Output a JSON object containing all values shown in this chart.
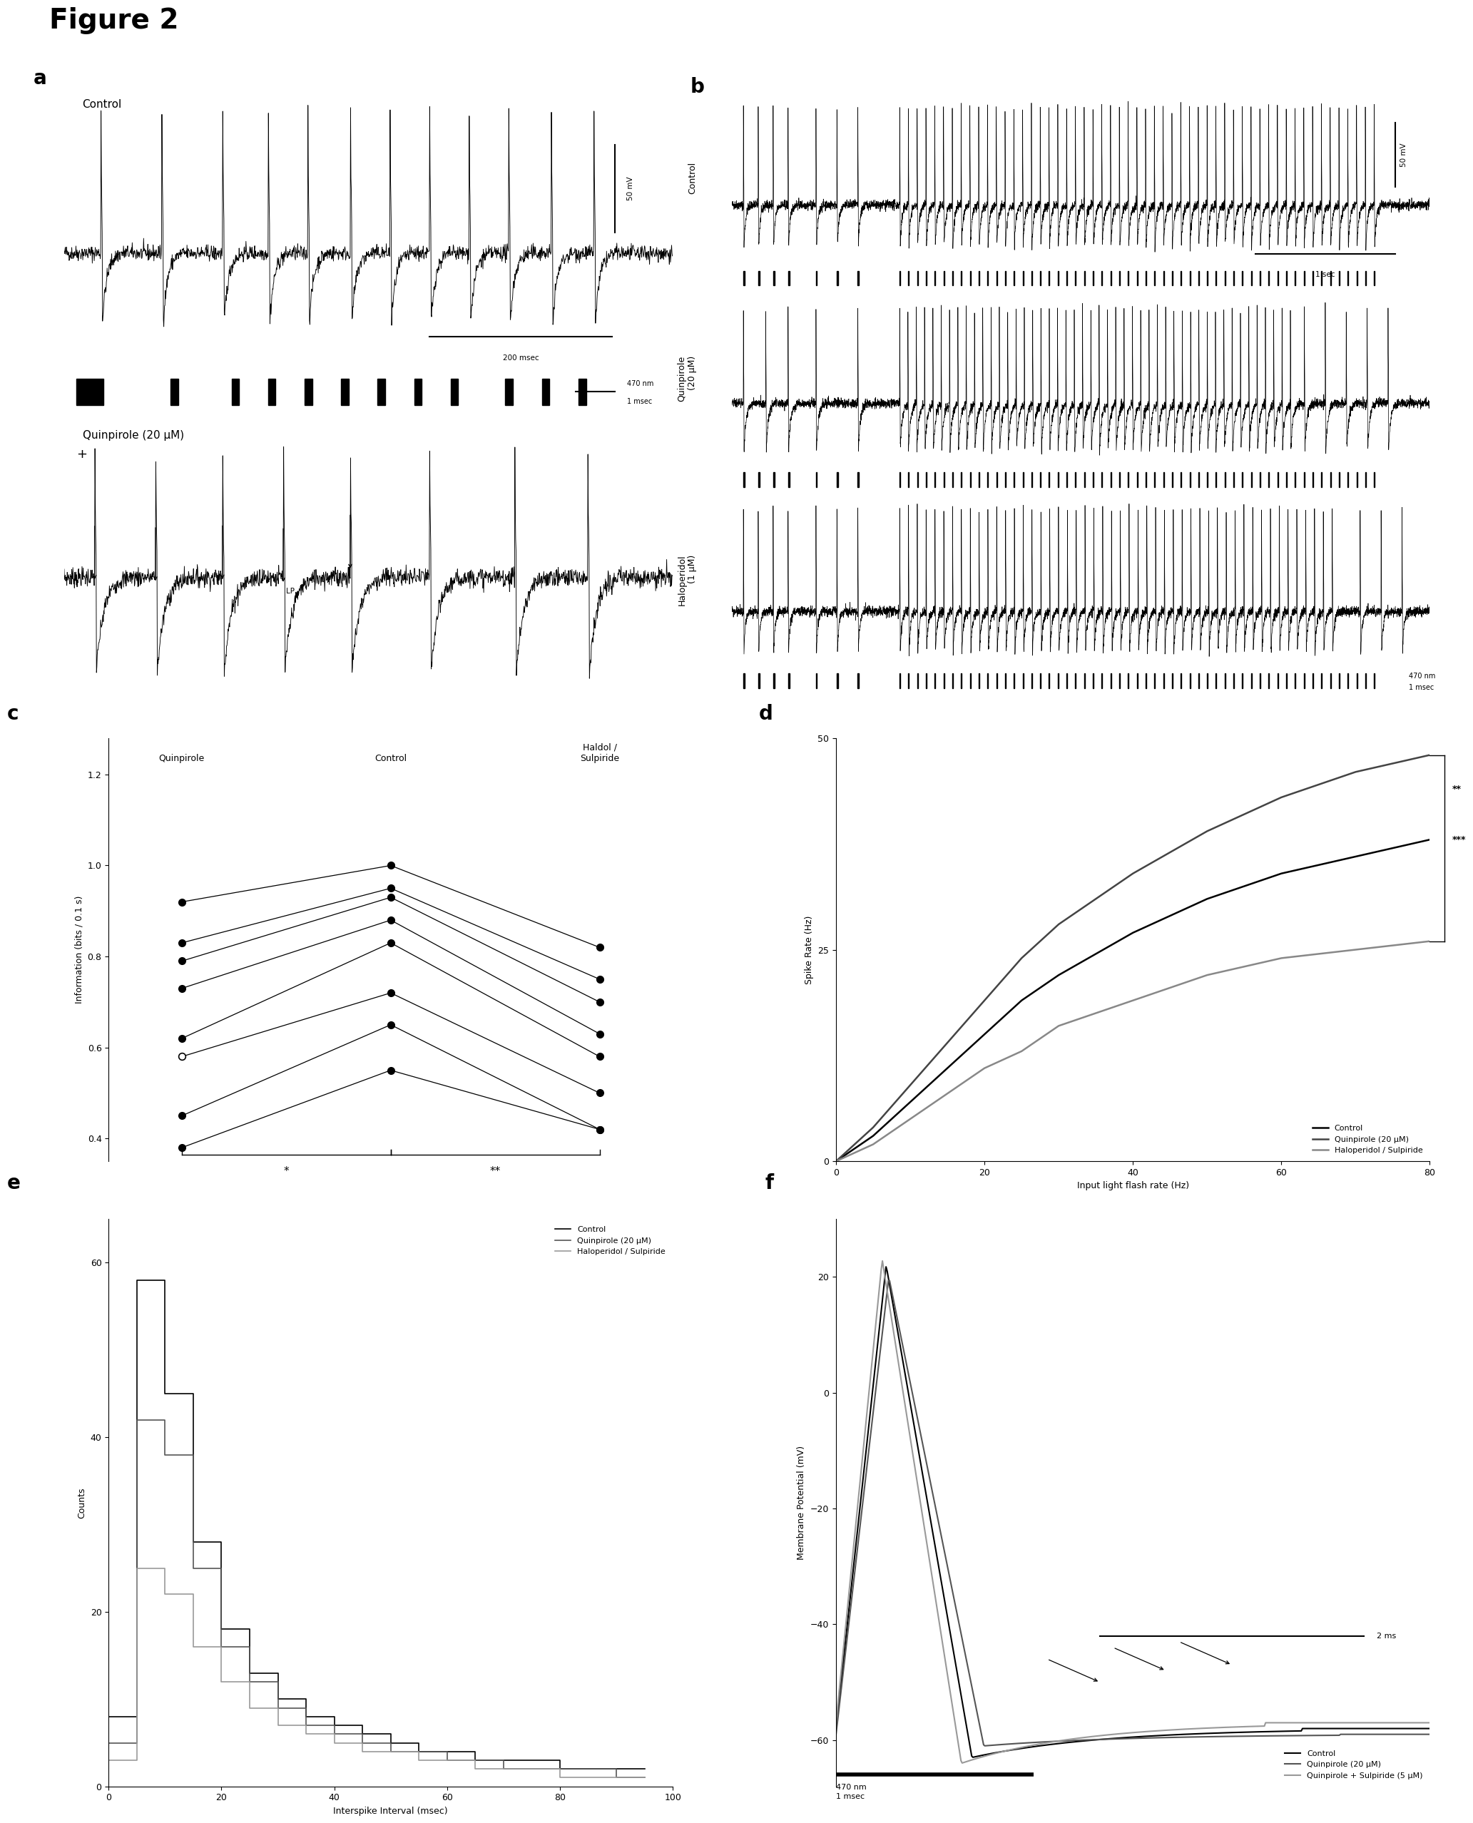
{
  "figure_title": "Figure 2",
  "panel_labels": [
    "a",
    "b",
    "c",
    "d",
    "e",
    "f"
  ],
  "panel_c": {
    "ylabel": "Information (bits / 0.1 s)",
    "ylim": [
      0.35,
      1.28
    ],
    "yticks": [
      0.4,
      0.6,
      0.8,
      1.0,
      1.2
    ],
    "lines": [
      {
        "quinpirole": 0.92,
        "control": 1.0,
        "haldol": 0.82
      },
      {
        "quinpirole": 0.83,
        "control": 0.95,
        "haldol": 0.75
      },
      {
        "quinpirole": 0.79,
        "control": 0.93,
        "haldol": 0.7
      },
      {
        "quinpirole": 0.73,
        "control": 0.88,
        "haldol": 0.63
      },
      {
        "quinpirole": 0.62,
        "control": 0.83,
        "haldol": 0.58
      },
      {
        "quinpirole": 0.58,
        "control": 0.72,
        "haldol": 0.5
      },
      {
        "quinpirole": 0.45,
        "control": 0.65,
        "haldol": 0.42
      },
      {
        "quinpirole": 0.38,
        "control": 0.55,
        "haldol": 0.42
      }
    ],
    "open_circle_idx": 5,
    "sig_left": "*",
    "sig_right": "**"
  },
  "panel_d": {
    "ylabel": "Spike Rate (Hz)",
    "xlabel": "Input light flash rate (Hz)",
    "ylim": [
      0,
      50
    ],
    "xlim": [
      0,
      80
    ],
    "yticks": [
      0,
      25,
      50
    ],
    "xticks": [
      0,
      20,
      40,
      60,
      80
    ],
    "control_x": [
      0,
      5,
      10,
      15,
      20,
      25,
      30,
      40,
      50,
      60,
      70,
      80
    ],
    "control_y": [
      0,
      3,
      7,
      11,
      15,
      19,
      22,
      27,
      31,
      34,
      36,
      38
    ],
    "quinpirole_x": [
      0,
      5,
      10,
      15,
      20,
      25,
      30,
      40,
      50,
      60,
      70,
      80
    ],
    "quinpirole_y": [
      0,
      4,
      9,
      14,
      19,
      24,
      28,
      34,
      39,
      43,
      46,
      48
    ],
    "haldol_x": [
      0,
      5,
      10,
      15,
      20,
      25,
      30,
      40,
      50,
      60,
      70,
      80
    ],
    "haldol_y": [
      0,
      2,
      5,
      8,
      11,
      13,
      16,
      19,
      22,
      24,
      25,
      26
    ],
    "sig_top": "**",
    "sig_bottom": "***",
    "legend": [
      "Control",
      "Quinpirole (20 μM)",
      "Haloperidol / Sulpiride"
    ]
  },
  "panel_e": {
    "ylabel": "Counts",
    "xlabel": "Interspike Interval (msec)",
    "xlim": [
      0,
      100
    ],
    "ylim": [
      0,
      65
    ],
    "yticks": [
      0,
      20,
      40,
      60
    ],
    "xticks": [
      0,
      20,
      40,
      60,
      80,
      100
    ],
    "bins": [
      0,
      5,
      10,
      15,
      20,
      25,
      30,
      35,
      40,
      45,
      50,
      55,
      60,
      65,
      70,
      75,
      80,
      85,
      90,
      95,
      100
    ],
    "control_hist": [
      8,
      58,
      45,
      28,
      18,
      13,
      10,
      8,
      7,
      6,
      5,
      4,
      4,
      3,
      3,
      3,
      2,
      2,
      2,
      2
    ],
    "quinpirole_hist": [
      5,
      42,
      38,
      25,
      16,
      12,
      9,
      7,
      6,
      5,
      4,
      4,
      3,
      3,
      2,
      2,
      2,
      2,
      1,
      1
    ],
    "haldol_hist": [
      3,
      25,
      22,
      16,
      12,
      9,
      7,
      6,
      5,
      4,
      4,
      3,
      3,
      2,
      2,
      2,
      1,
      1,
      1,
      1
    ],
    "legend": [
      "Control",
      "Quinpirole (20 μM)",
      "Haloperidol / Sulpiride"
    ]
  },
  "colors": {
    "control": "#000000",
    "quinpirole": "#555555",
    "haldol": "#999999",
    "quinpirole_sulpiride": "#bbbbbb"
  }
}
